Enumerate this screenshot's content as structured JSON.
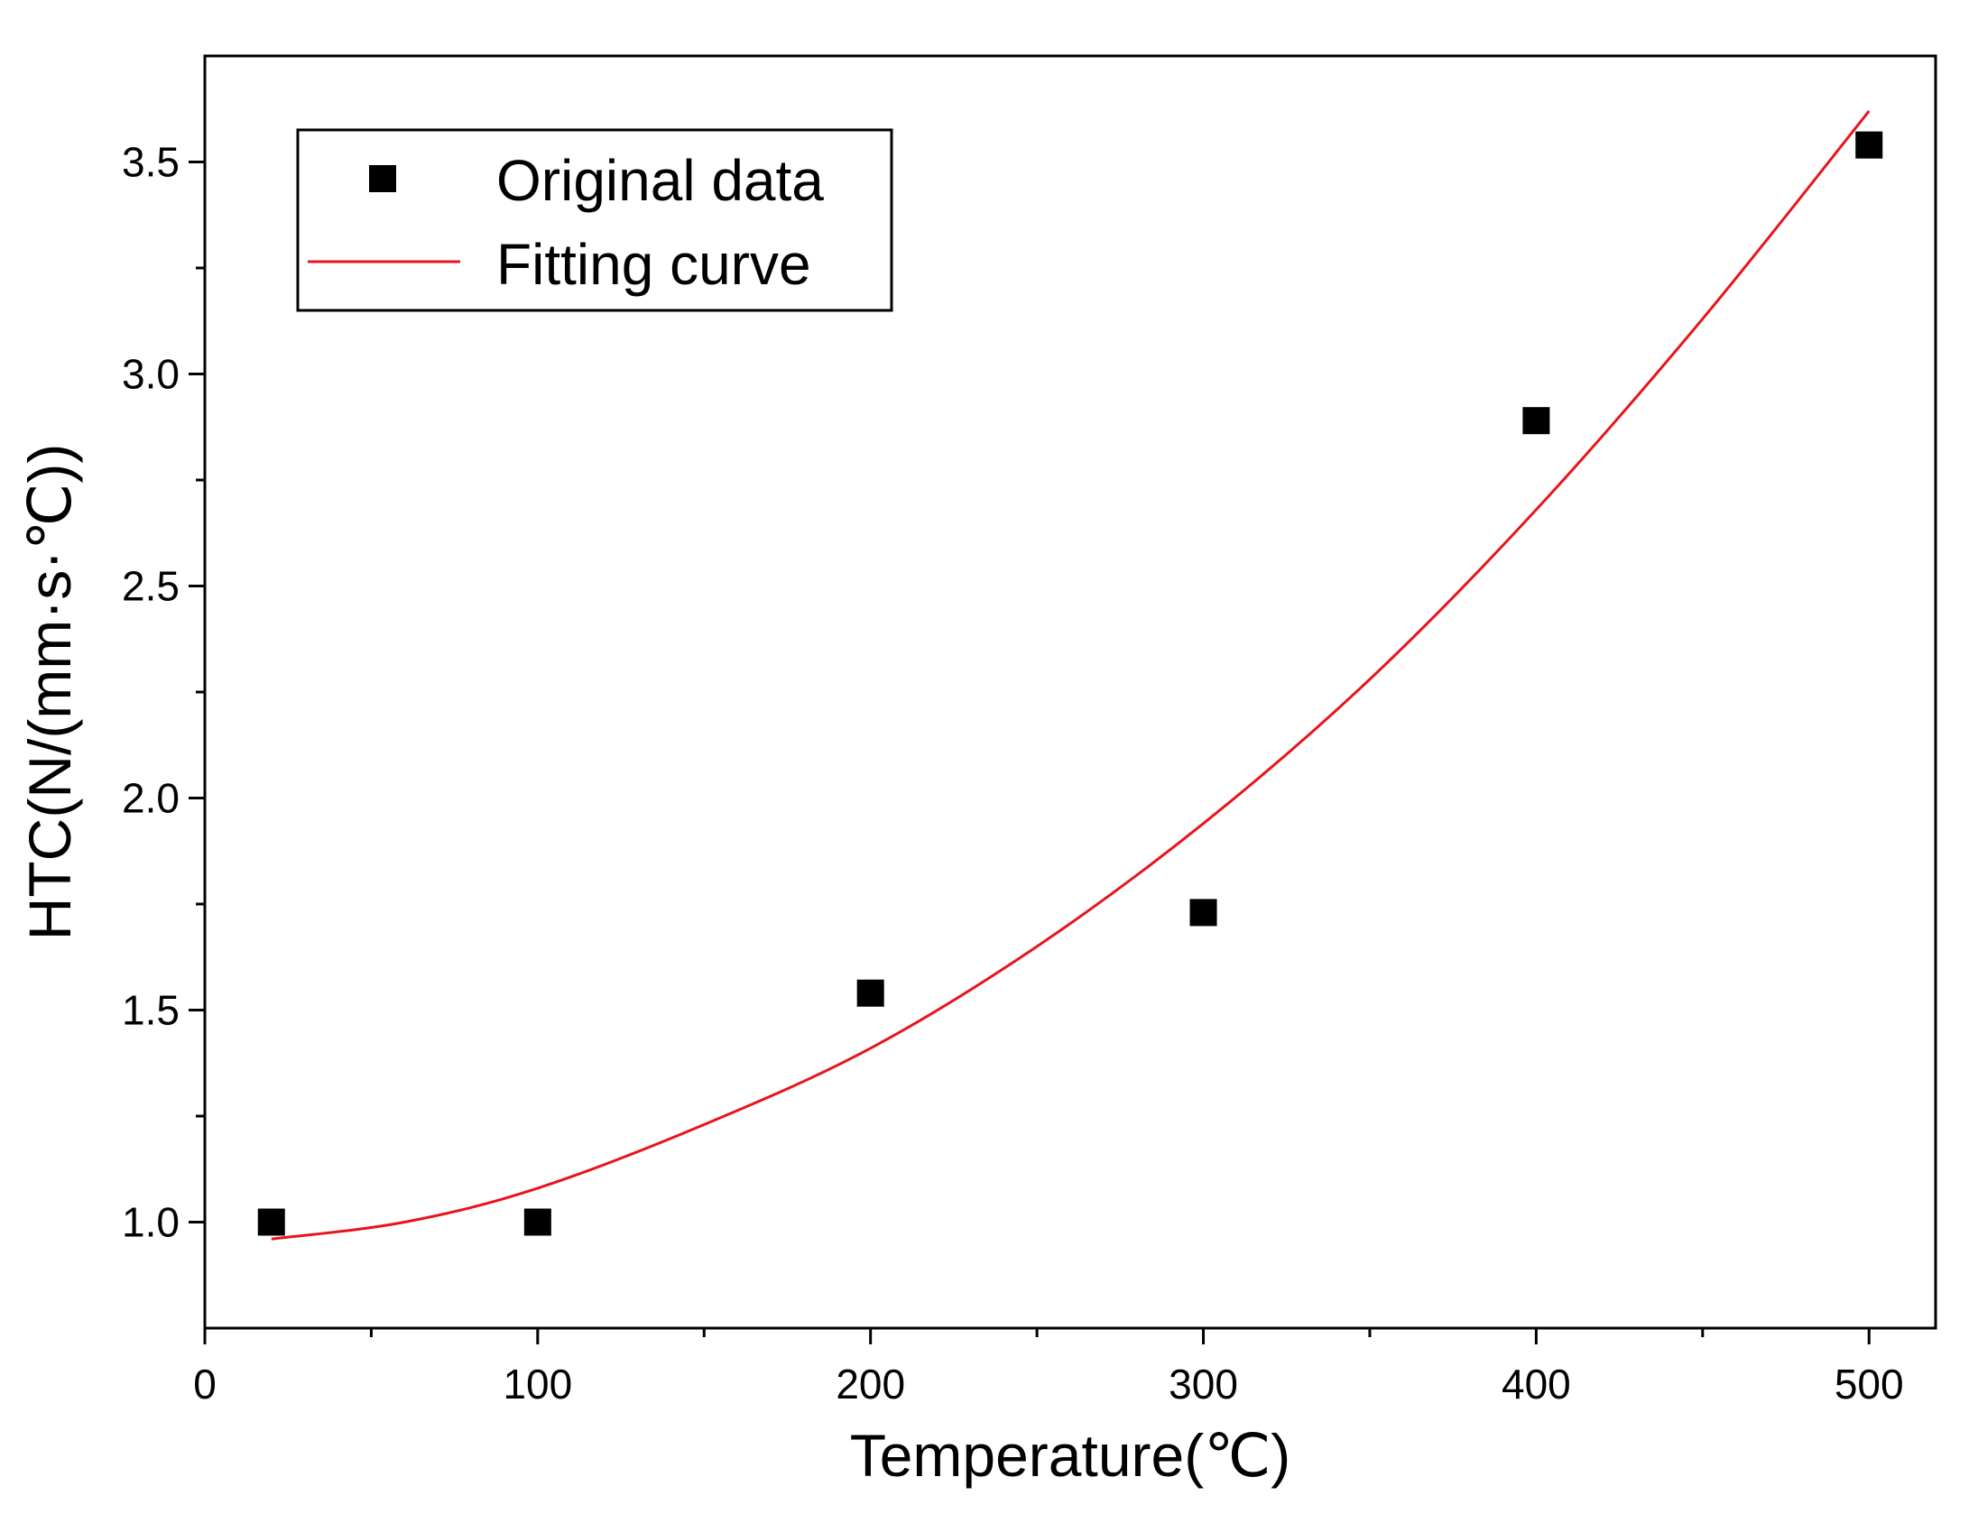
{
  "chart_data": {
    "type": "scatter",
    "title": "",
    "xlabel": "Temperature(℃)",
    "ylabel": "HTC(N/(mm·s·℃))",
    "xlim": [
      0,
      520
    ],
    "ylim": [
      0.75,
      3.75
    ],
    "x_ticks": [
      0,
      100,
      200,
      300,
      400,
      500
    ],
    "x_tick_labels": [
      "0",
      "100",
      "200",
      "300",
      "400",
      "500"
    ],
    "x_minor_ticks": [
      50,
      150,
      250,
      350,
      450
    ],
    "y_ticks": [
      1.0,
      1.5,
      2.0,
      2.5,
      3.0,
      3.5
    ],
    "y_tick_labels": [
      "1.0",
      "1.5",
      "2.0",
      "2.5",
      "3.0",
      "3.5"
    ],
    "y_minor_ticks": [
      1.25,
      1.75,
      2.25,
      2.75,
      3.25
    ],
    "grid": false,
    "legend_position": "top-left",
    "series": [
      {
        "name": "Original data",
        "kind": "scatter",
        "marker": "square",
        "color": "#000000",
        "x": [
          20,
          100,
          200,
          300,
          400,
          500
        ],
        "y": [
          1.0,
          1.0,
          1.54,
          1.73,
          2.89,
          3.54
        ]
      },
      {
        "name": "Fitting curve",
        "kind": "line",
        "color": "#e8141c",
        "x": [
          20,
          60,
          100,
          150,
          200,
          250,
          300,
          350,
          400,
          450,
          500
        ],
        "y": [
          0.96,
          1.0,
          1.08,
          1.23,
          1.41,
          1.65,
          1.94,
          2.28,
          2.68,
          3.13,
          3.62
        ]
      }
    ]
  }
}
